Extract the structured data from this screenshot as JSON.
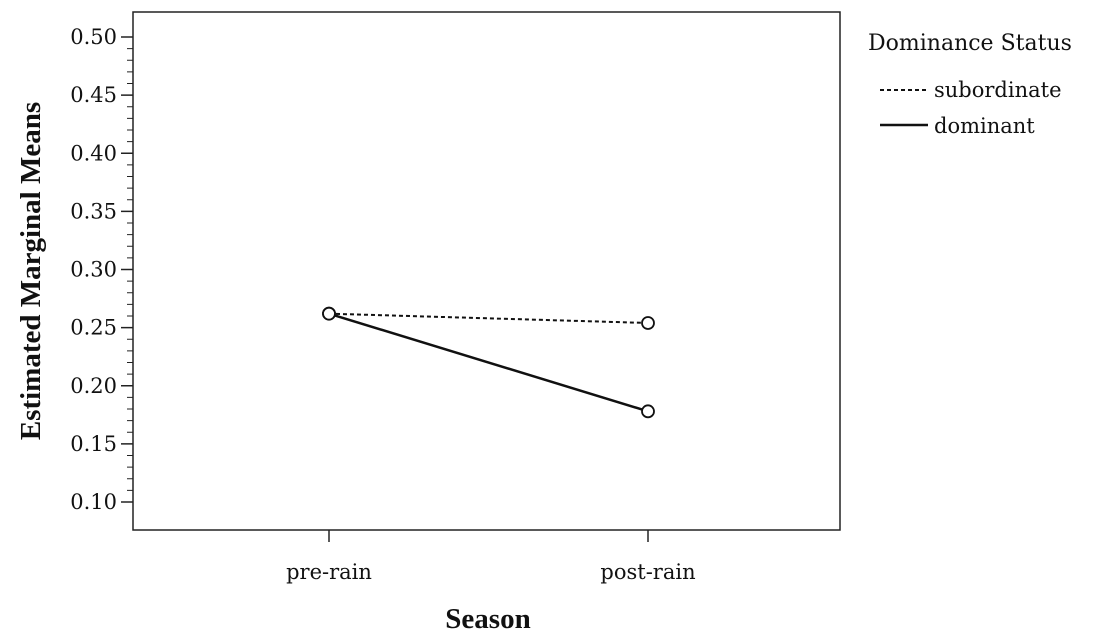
{
  "chart_data": {
    "type": "line",
    "xlabel": "Season",
    "ylabel": "Estimated Marginal Means",
    "categories": [
      "pre-rain",
      "post-rain"
    ],
    "ylim": [
      0.08,
      0.52
    ],
    "y_ticks": [
      "0.10",
      "0.15",
      "0.20",
      "0.25",
      "0.30",
      "0.35",
      "0.40",
      "0.45",
      "0.50"
    ],
    "grid": false,
    "legend": {
      "title": "Dominance Status",
      "position": "right"
    },
    "series": [
      {
        "name": "subordinate",
        "values": [
          0.262,
          0.254
        ],
        "line_style": "dashed",
        "marker": "circle",
        "color": "#111111"
      },
      {
        "name": "dominant",
        "values": [
          0.262,
          0.178
        ],
        "line_style": "solid",
        "marker": "circle",
        "color": "#111111"
      }
    ]
  }
}
